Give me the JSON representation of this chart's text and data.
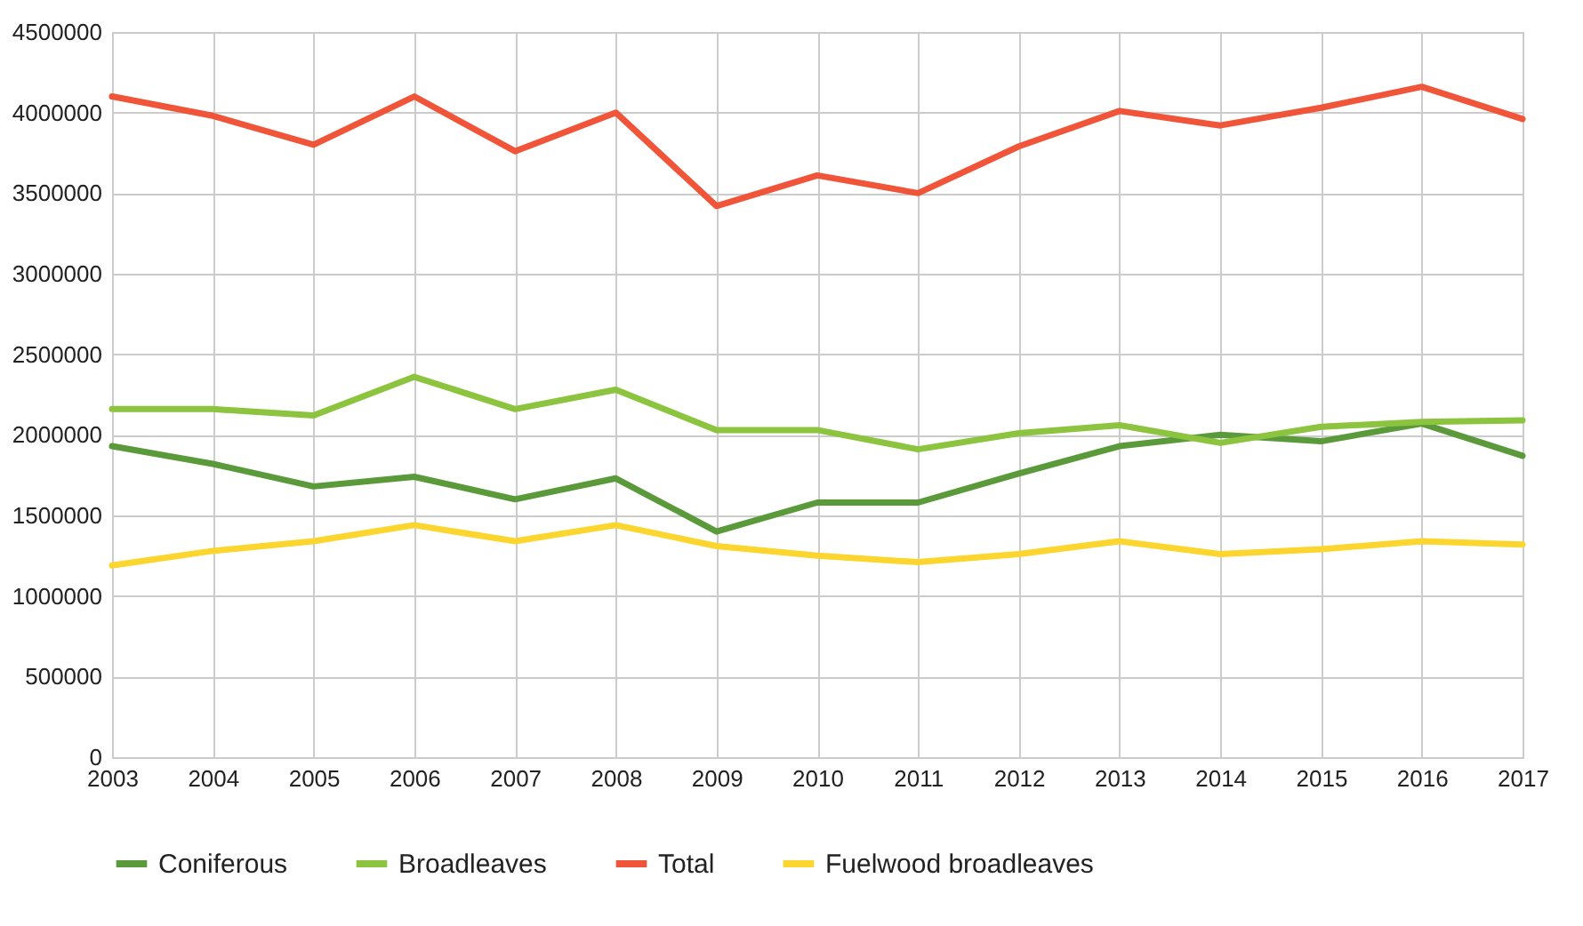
{
  "chart_data": {
    "type": "line",
    "categories": [
      "2003",
      "2004",
      "2005",
      "2006",
      "2007",
      "2008",
      "2009",
      "2010",
      "2011",
      "2012",
      "2013",
      "2014",
      "2015",
      "2016",
      "2017"
    ],
    "series": [
      {
        "name": "Coniferous",
        "color": "#5a9a3a",
        "values": [
          1930000,
          1820000,
          1680000,
          1740000,
          1600000,
          1730000,
          1400000,
          1580000,
          1580000,
          1760000,
          1930000,
          2000000,
          1960000,
          2070000,
          1870000
        ]
      },
      {
        "name": "Broadleaves",
        "color": "#8cc43f",
        "values": [
          2160000,
          2160000,
          2120000,
          2360000,
          2160000,
          2280000,
          2030000,
          2030000,
          1910000,
          2010000,
          2060000,
          1950000,
          2050000,
          2080000,
          2090000
        ]
      },
      {
        "name": "Total",
        "color": "#f0553a",
        "values": [
          4100000,
          3980000,
          3800000,
          4100000,
          3760000,
          4000000,
          3420000,
          3610000,
          3500000,
          3790000,
          4010000,
          3920000,
          4030000,
          4160000,
          3960000
        ]
      },
      {
        "name": "Fuelwood broadleaves",
        "color": "#fcd52e",
        "values": [
          1190000,
          1280000,
          1340000,
          1440000,
          1340000,
          1440000,
          1310000,
          1250000,
          1210000,
          1260000,
          1340000,
          1260000,
          1290000,
          1340000,
          1320000
        ]
      }
    ],
    "ylim": [
      0,
      4500000
    ],
    "yticks": [
      0,
      500000,
      1000000,
      1500000,
      2000000,
      2500000,
      3000000,
      3500000,
      4000000,
      4500000
    ],
    "grid": true,
    "legend": "bottom",
    "marker": "none",
    "line_style": "solid"
  }
}
